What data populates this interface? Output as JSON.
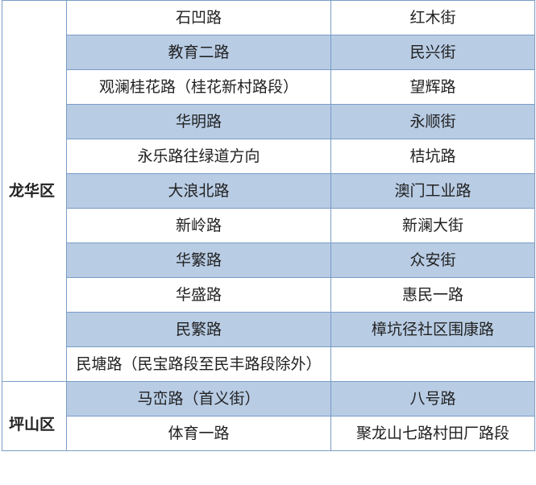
{
  "colors": {
    "stripe": "#b8cce4",
    "border": "#7a9cc6"
  },
  "districts": [
    {
      "name": "龙华区",
      "rows": [
        [
          "石凹路",
          "红木街"
        ],
        [
          "教育二路",
          "民兴街"
        ],
        [
          "观澜桂花路（桂花新村路段）",
          "望辉路"
        ],
        [
          "华明路",
          "永顺街"
        ],
        [
          "永乐路往绿道方向",
          "桔坑路"
        ],
        [
          "大浪北路",
          "澳门工业路"
        ],
        [
          "新岭路",
          "新澜大街"
        ],
        [
          "华繁路",
          "众安街"
        ],
        [
          "华盛路",
          "惠民一路"
        ],
        [
          "民繁路",
          "樟坑径社区围康路"
        ],
        [
          "民塘路（民宝路段至民丰路段除外）",
          ""
        ]
      ]
    },
    {
      "name": "坪山区",
      "rows": [
        [
          "马峦路（首义街）",
          "八号路"
        ],
        [
          "体育一路",
          "聚龙山七路村田厂路段"
        ]
      ]
    }
  ]
}
